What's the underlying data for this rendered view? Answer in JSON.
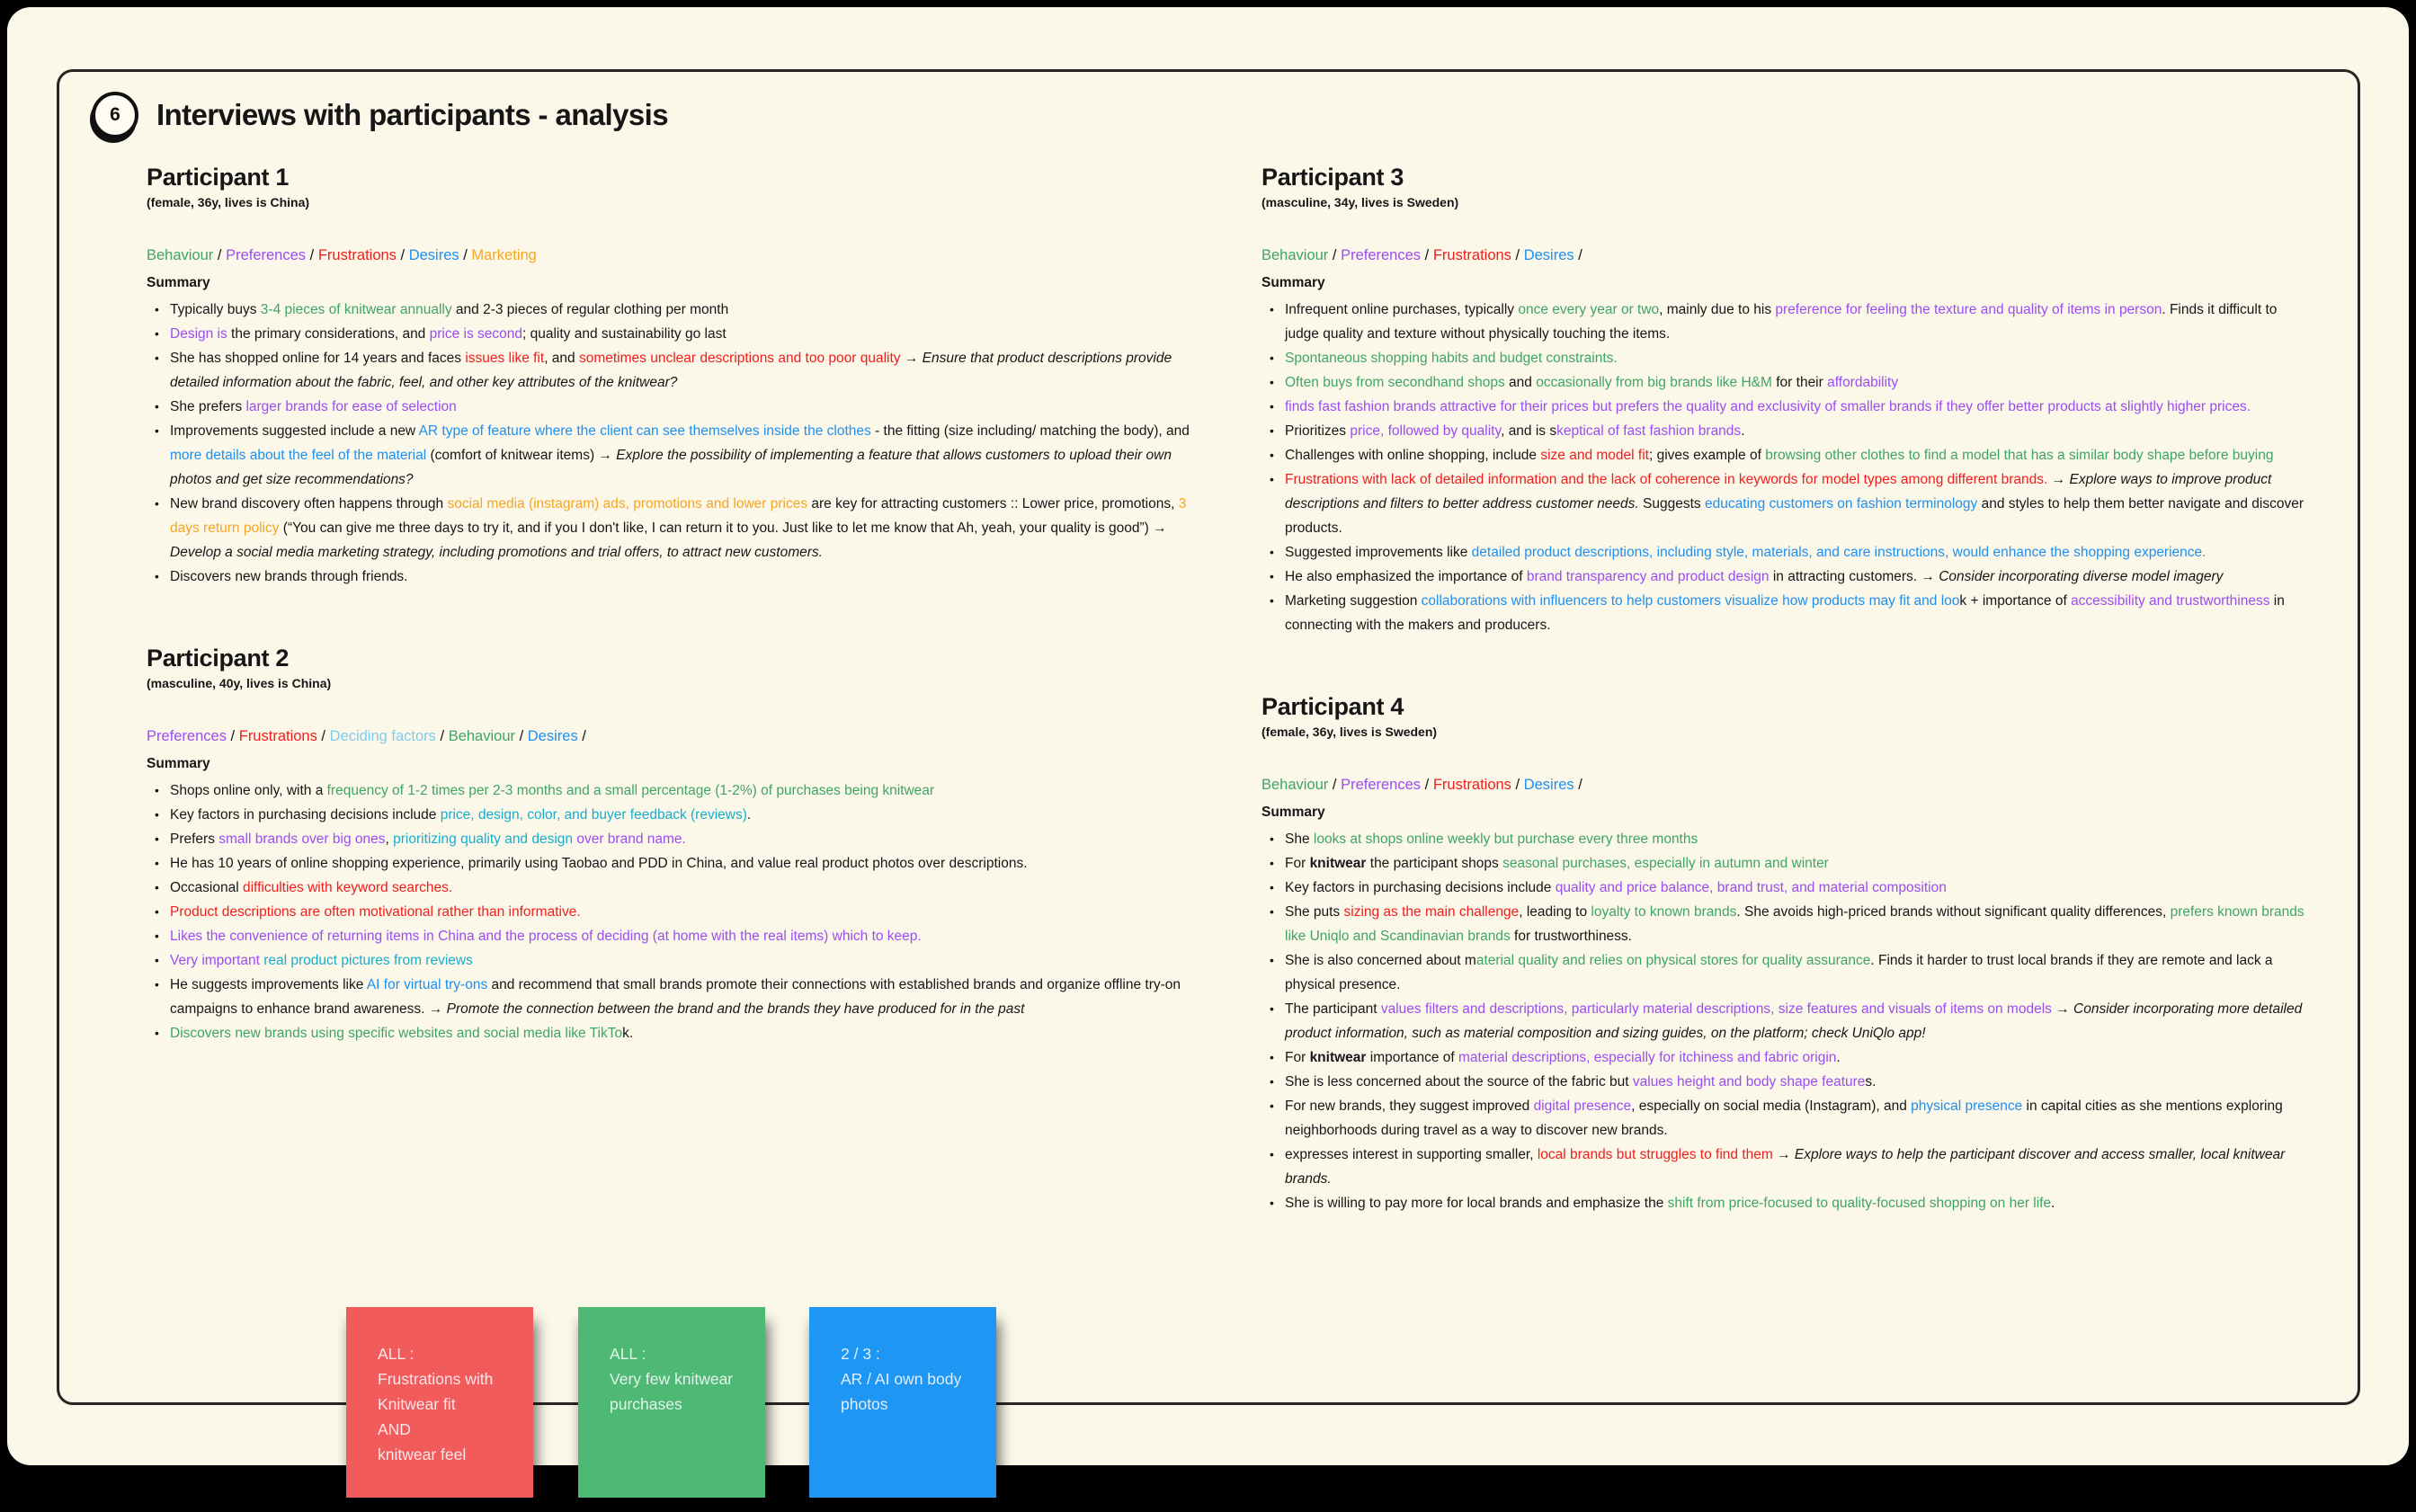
{
  "header": {
    "badge": "6",
    "title": "Interviews with participants - analysis"
  },
  "colors": {
    "ink": "#161616",
    "green": "#3FA564",
    "purple": "#9B4DF2",
    "red": "#F21D1D",
    "blue": "#1E90F0",
    "orange": "#F5A623",
    "cyan": "#17AECE",
    "lightblue": "#7FCDEF"
  },
  "participants": [
    {
      "name": "Participant 1",
      "subtitle": "(female, 36y, lives is China)",
      "legend": [
        {
          "t": "Behaviour",
          "c": "g"
        },
        {
          "t": " / ",
          "c": "k"
        },
        {
          "t": "Preferences",
          "c": "p"
        },
        {
          "t": " / ",
          "c": "k"
        },
        {
          "t": "Frustrations",
          "c": "r"
        },
        {
          "t": " / ",
          "c": "k"
        },
        {
          "t": "Desires",
          "c": "b"
        },
        {
          "t": " / ",
          "c": "k"
        },
        {
          "t": "Marketing",
          "c": "o"
        }
      ],
      "summary_label": "Summary",
      "bullets": [
        [
          {
            "t": "Typically buys ",
            "c": "k"
          },
          {
            "t": "3-4 pieces of knitwear annually",
            "c": "g"
          },
          {
            "t": " and 2-3 pieces of regular clothing per month",
            "c": "k"
          }
        ],
        [
          {
            "t": "Design is",
            "c": "p"
          },
          {
            "t": " the primary considerations, and ",
            "c": "k"
          },
          {
            "t": "price is second",
            "c": "p"
          },
          {
            "t": "; quality and sustainability go last",
            "c": "k"
          }
        ],
        [
          {
            "t": "She has shopped online for 14 years and faces ",
            "c": "k"
          },
          {
            "t": "issues like fit",
            "c": "r"
          },
          {
            "t": ", and ",
            "c": "k"
          },
          {
            "t": "sometimes unclear descriptions and too poor quality",
            "c": "r"
          },
          {
            "t": " → ",
            "c": "k"
          },
          {
            "t": "Ensure that product descriptions provide detailed information about the fabric, feel, and other key attributes of the knitwear?",
            "c": "k",
            "i": true
          }
        ],
        [
          {
            "t": "She prefers ",
            "c": "k"
          },
          {
            "t": "larger brands for ease of selection",
            "c": "p"
          }
        ],
        [
          {
            "t": "Improvements suggested include a new ",
            "c": "k"
          },
          {
            "t": "AR type of feature where the client can see themselves inside the clothes",
            "c": "b"
          },
          {
            "t": " - the fitting (size including/ matching the body), and ",
            "c": "k"
          },
          {
            "t": "more details about the feel of the material",
            "c": "b"
          },
          {
            "t": " (comfort of knitwear items) → ",
            "c": "k"
          },
          {
            "t": "Explore the possibility of implementing a feature that allows customers to upload their own photos and get size recommendations?",
            "c": "k",
            "i": true
          }
        ],
        [
          {
            "t": "New brand discovery often happens through ",
            "c": "k"
          },
          {
            "t": "social media (instagram) ads, promotions and lower prices",
            "c": "o"
          },
          {
            "t": " are key for attracting customers :: Lower price, promotions, ",
            "c": "k"
          },
          {
            "t": "3 days return policy",
            "c": "o"
          },
          {
            "t": " (“You can give me three days to try it, and if you I don't like, I can return it to you. Just like to let me know that Ah, yeah, your quality is good”) → ",
            "c": "k"
          },
          {
            "t": "Develop a social media marketing strategy, including promotions and trial offers, to attract new customers.",
            "c": "k",
            "i": true
          }
        ],
        [
          {
            "t": "Discovers new brands through friends.",
            "c": "k"
          }
        ]
      ]
    },
    {
      "name": "Participant 2",
      "subtitle": "(masculine, 40y, lives is China)",
      "legend": [
        {
          "t": "Preferences",
          "c": "p"
        },
        {
          "t": " / ",
          "c": "k"
        },
        {
          "t": "Frustrations",
          "c": "r"
        },
        {
          "t": " / ",
          "c": "k"
        },
        {
          "t": "Deciding factors",
          "c": "lb"
        },
        {
          "t": " / ",
          "c": "k"
        },
        {
          "t": "Behaviour",
          "c": "g"
        },
        {
          "t": " / ",
          "c": "k"
        },
        {
          "t": "Desires",
          "c": "b"
        },
        {
          "t": " /",
          "c": "k"
        }
      ],
      "summary_label": "Summary",
      "bullets": [
        [
          {
            "t": "Shops online only, with a ",
            "c": "k"
          },
          {
            "t": "frequency of 1-2 times per 2-3 months and a small percentage (1-2%) of purchases being knitwear",
            "c": "g"
          }
        ],
        [
          {
            "t": "Key factors in purchasing decisions include ",
            "c": "k"
          },
          {
            "t": "price, design, color, and buyer feedback (reviews)",
            "c": "c"
          },
          {
            "t": ".",
            "c": "k"
          }
        ],
        [
          {
            "t": "Prefers ",
            "c": "k"
          },
          {
            "t": "small brands over big ones",
            "c": "p"
          },
          {
            "t": ", ",
            "c": "k"
          },
          {
            "t": "prioritizing quality and design ",
            "c": "c"
          },
          {
            "t": "over brand name.",
            "c": "p"
          }
        ],
        [
          {
            "t": "He has 10 years of online shopping experience, primarily using Taobao and PDD in China, and value real product photos over descriptions.",
            "c": "k"
          }
        ],
        [
          {
            "t": "Occasional ",
            "c": "k"
          },
          {
            "t": "difficulties with keyword searches.",
            "c": "r"
          }
        ],
        [
          {
            "t": "Product descriptions are often motivational rather than informative.",
            "c": "r"
          }
        ],
        [
          {
            "t": "Likes the convenience of returning items in China and the process of deciding (at home with the real items) which to keep.",
            "c": "p"
          }
        ],
        [
          {
            "t": "Very important ",
            "c": "p"
          },
          {
            "t": "real product pictures from reviews",
            "c": "c"
          }
        ],
        [
          {
            "t": "He suggests improvements like ",
            "c": "k"
          },
          {
            "t": "AI for virtual try-ons",
            "c": "b"
          },
          {
            "t": " and recommend that small brands promote their connections with established brands and organize offline try-on campaigns to enhance brand awareness. → ",
            "c": "k"
          },
          {
            "t": "Promote the connection between the brand and the brands they have produced for in the past",
            "c": "k",
            "i": true
          }
        ],
        [
          {
            "t": "Discovers new brands using specific websites and social media like TikTo",
            "c": "g"
          },
          {
            "t": "k.",
            "c": "k"
          }
        ]
      ]
    },
    {
      "name": "Participant 3",
      "subtitle": "(masculine, 34y, lives is Sweden)",
      "legend": [
        {
          "t": "Behaviour",
          "c": "g"
        },
        {
          "t": " / ",
          "c": "k"
        },
        {
          "t": "Preferences",
          "c": "p"
        },
        {
          "t": " / ",
          "c": "k"
        },
        {
          "t": "Frustrations",
          "c": "r"
        },
        {
          "t": " / ",
          "c": "k"
        },
        {
          "t": "Desires",
          "c": "b"
        },
        {
          "t": " /",
          "c": "k"
        }
      ],
      "summary_label": "Summary",
      "bullets": [
        [
          {
            "t": "Infrequent online purchases, typically ",
            "c": "k"
          },
          {
            "t": "once every year or two",
            "c": "g"
          },
          {
            "t": ", mainly due to his ",
            "c": "k"
          },
          {
            "t": "preference for feeling the texture and quality of items in person",
            "c": "p"
          },
          {
            "t": ". Finds it difficult to judge quality and texture without physically touching the items.",
            "c": "k"
          }
        ],
        [
          {
            "t": "Spontaneous shopping habits and budget constraints.",
            "c": "g"
          }
        ],
        [
          {
            "t": "Often buys from secondhand shops",
            "c": "g"
          },
          {
            "t": " and ",
            "c": "k"
          },
          {
            "t": "occasionally from big brands like H&M",
            "c": "g"
          },
          {
            "t": " for their ",
            "c": "k"
          },
          {
            "t": "affordability",
            "c": "p"
          }
        ],
        [
          {
            "t": "finds fast fashion brands attractive for their prices but prefers the quality and exclusivity of smaller brands if they offer better products at slightly higher prices.",
            "c": "p"
          }
        ],
        [
          {
            "t": "Prioritizes ",
            "c": "k"
          },
          {
            "t": "price, followed by quality",
            "c": "p"
          },
          {
            "t": ", and is s",
            "c": "k"
          },
          {
            "t": "keptical of fast fashion brands",
            "c": "p"
          },
          {
            "t": ".",
            "c": "k"
          }
        ],
        [
          {
            "t": "Challenges with online shopping, include ",
            "c": "k"
          },
          {
            "t": "size and model fit",
            "c": "r"
          },
          {
            "t": "; gives example of ",
            "c": "k"
          },
          {
            "t": "browsing other clothes to find a model that has a similar body shape before buying",
            "c": "g"
          }
        ],
        [
          {
            "t": "Frustrations with lack of detailed information and the lack of coherence in keywords for model types among different brands.",
            "c": "r"
          },
          {
            "t": " → ",
            "c": "k"
          },
          {
            "t": "Explore ways to improve product descriptions and filters to better address customer needs.",
            "c": "k",
            "i": true
          },
          {
            "t": " Suggests ",
            "c": "k"
          },
          {
            "t": "educating customers on fashion terminology",
            "c": "b"
          },
          {
            "t": " and styles to help them better navigate and discover products.",
            "c": "k"
          }
        ],
        [
          {
            "t": "Suggested improvements like ",
            "c": "k"
          },
          {
            "t": "detailed product descriptions, including style, materials, and care instructions, would enhance the shopping experience.",
            "c": "b"
          }
        ],
        [
          {
            "t": "He also emphasized the importance of ",
            "c": "k"
          },
          {
            "t": "brand transparency and product design",
            "c": "p"
          },
          {
            "t": " in attracting customers. → ",
            "c": "k"
          },
          {
            "t": "Consider incorporating diverse model imagery",
            "c": "k",
            "i": true
          }
        ],
        [
          {
            "t": "Marketing suggestion ",
            "c": "k"
          },
          {
            "t": "collaborations with influencers to help customers visualize how products may fit and loo",
            "c": "b"
          },
          {
            "t": "k +  importance of ",
            "c": "k"
          },
          {
            "t": "accessibility and trustworthiness",
            "c": "p"
          },
          {
            "t": " in connecting with the makers and producers.",
            "c": "k"
          }
        ]
      ]
    },
    {
      "name": "Participant 4",
      "subtitle": "(female, 36y, lives is Sweden)",
      "legend": [
        {
          "t": "Behaviour",
          "c": "g"
        },
        {
          "t": " / ",
          "c": "k"
        },
        {
          "t": "Preferences",
          "c": "p"
        },
        {
          "t": " / ",
          "c": "k"
        },
        {
          "t": "Frustrations",
          "c": "r"
        },
        {
          "t": " / ",
          "c": "k"
        },
        {
          "t": "Desires",
          "c": "b"
        },
        {
          "t": " /",
          "c": "k"
        }
      ],
      "summary_label": "Summary",
      "bullets": [
        [
          {
            "t": "She ",
            "c": "k"
          },
          {
            "t": "looks at shops online weekly but purchase every three months",
            "c": "g"
          }
        ],
        [
          {
            "t": "For ",
            "c": "k"
          },
          {
            "t": "knitwear",
            "c": "k",
            "b": true
          },
          {
            "t": " the participant shops ",
            "c": "k"
          },
          {
            "t": "seasonal purchases, especially in autumn and winter",
            "c": "g"
          }
        ],
        [
          {
            "t": "Key factors in purchasing decisions include ",
            "c": "k"
          },
          {
            "t": "quality and price balance, brand trust, and material composition",
            "c": "p"
          }
        ],
        [
          {
            "t": "She puts ",
            "c": "k"
          },
          {
            "t": "sizing as the main challenge",
            "c": "r"
          },
          {
            "t": ", leading to ",
            "c": "k"
          },
          {
            "t": "loyalty to known brands",
            "c": "g"
          },
          {
            "t": ". She avoids high-priced brands without significant quality differences, ",
            "c": "k"
          },
          {
            "t": "prefers known brands like Uniqlo and Scandinavian brands",
            "c": "g"
          },
          {
            "t": " for trustworthiness.",
            "c": "k"
          }
        ],
        [
          {
            "t": "She is also concerned about m",
            "c": "k"
          },
          {
            "t": "aterial quality and relies on physical stores for quality assurance",
            "c": "g"
          },
          {
            "t": ". Finds it harder to trust local brands if they are remote and lack a physical presence.",
            "c": "k"
          }
        ],
        [
          {
            "t": "The participant ",
            "c": "k"
          },
          {
            "t": "values filters and descriptions, particularly material descriptions, size features and visuals of items on models",
            "c": "p"
          },
          {
            "t": " → ",
            "c": "k"
          },
          {
            "t": "Consider incorporating more detailed product information, such as material composition and sizing guides, on the platform; check UniQlo app!",
            "c": "k",
            "i": true
          }
        ],
        [
          {
            "t": "For ",
            "c": "k"
          },
          {
            "t": "knitwear",
            "c": "k",
            "b": true
          },
          {
            "t": " importance of ",
            "c": "k"
          },
          {
            "t": "material descriptions, especially for itchiness and fabric origin",
            "c": "p"
          },
          {
            "t": ".",
            "c": "k"
          }
        ],
        [
          {
            "t": "She is less concerned about the source of the fabric but ",
            "c": "k"
          },
          {
            "t": "values height and body shape feature",
            "c": "p"
          },
          {
            "t": "s.",
            "c": "k"
          }
        ],
        [
          {
            "t": "For new brands, they suggest improved ",
            "c": "k"
          },
          {
            "t": "digital presence",
            "c": "p"
          },
          {
            "t": ", especially on social media (Instagram), and ",
            "c": "k"
          },
          {
            "t": "physical presence",
            "c": "b"
          },
          {
            "t": " in capital cities as she mentions exploring neighborhoods during travel as a way to discover new brands.",
            "c": "k"
          }
        ],
        [
          {
            "t": "expresses interest in supporting smaller, ",
            "c": "k"
          },
          {
            "t": "local brands but struggles to find them",
            "c": "r"
          },
          {
            "t": " → ",
            "c": "k"
          },
          {
            "t": "Explore ways to help the participant discover and access smaller, local knitwear brands.",
            "c": "k",
            "i": true
          }
        ],
        [
          {
            "t": "She is willing to pay more for local brands and emphasize the ",
            "c": "k"
          },
          {
            "t": "shift from price-focused to quality-focused shopping on her life",
            "c": "g"
          },
          {
            "t": ".",
            "c": "k"
          }
        ]
      ]
    }
  ],
  "sticky_notes": [
    {
      "bg": "#F15B5C",
      "lines": [
        "ALL :",
        "Frustrations with",
        "Knitwear fit",
        "AND",
        "knitwear feel"
      ]
    },
    {
      "bg": "#4DB974",
      "lines": [
        "ALL :",
        "Very few knitwear",
        "purchases"
      ]
    },
    {
      "bg": "#1E96F3",
      "lines": [
        "2 / 3 :",
        "AR / AI own body",
        "photos"
      ]
    }
  ]
}
